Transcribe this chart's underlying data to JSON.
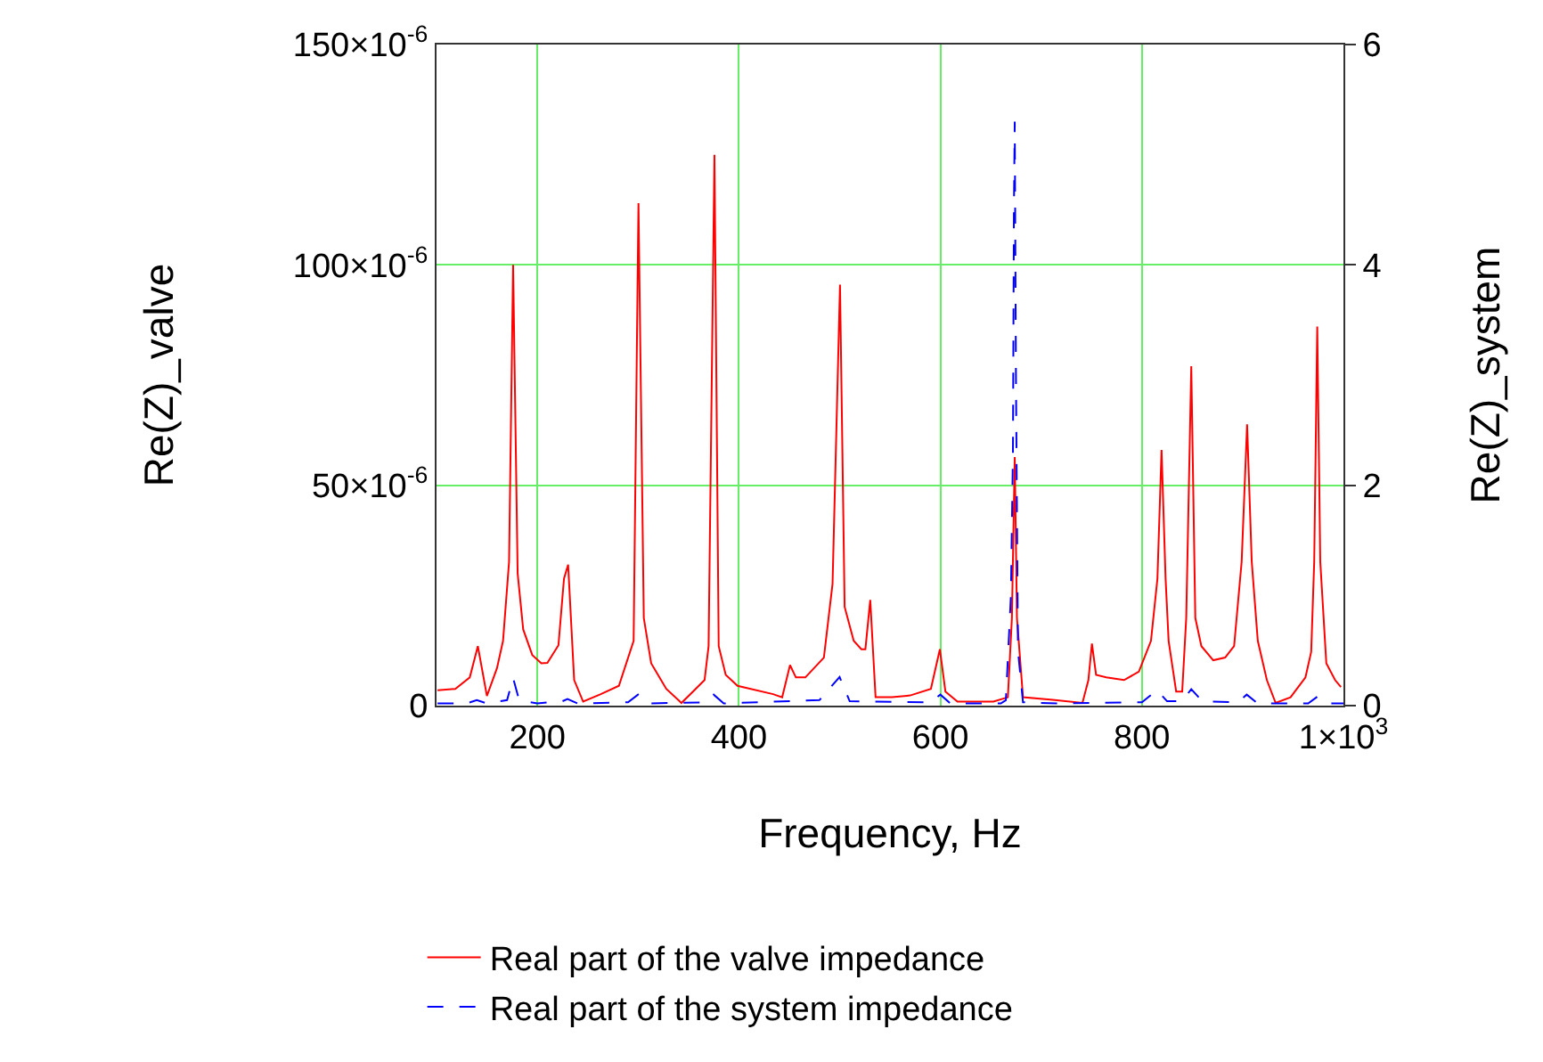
{
  "chart_data": {
    "type": "line",
    "xlabel": "Frequency, Hz",
    "ylabel": "Re(Z)_valve",
    "y2label": "Re(Z)_system",
    "xlim": [
      100,
      1000
    ],
    "xticks": [
      200,
      400,
      600,
      800,
      {
        "value": 1000,
        "label": "1×10$^{3}$"
      }
    ],
    "ylim": [
      0,
      0.00015
    ],
    "yticks": [
      0,
      {
        "value": 5e-05,
        "label": "50×10$^{-6}$"
      },
      {
        "value": 0.0001,
        "label": "100×10$^{-6}$"
      },
      {
        "value": 0.00015,
        "label": "150×10$^{-6}$"
      }
    ],
    "y2lim": [
      0,
      6
    ],
    "y2ticks": [
      0,
      2,
      4,
      6
    ],
    "grid": true,
    "legend": "bottom",
    "marker": "none",
    "series": [
      {
        "name": "Real part of the valve impedance",
        "color": "#ff0000",
        "line_style": "solid",
        "x": [
          101,
          118.6,
          133,
          141,
          150,
          160,
          166,
          172,
          176,
          180.5,
          186,
          195,
          204,
          210,
          221,
          226.5,
          230.6,
          236.6,
          245.5,
          263,
          281,
          295.6,
          300.4,
          305.7,
          313,
          328,
          343,
          354.5,
          366,
          370,
          375.8,
          380,
          387,
          398.7,
          434,
          443,
          450.8,
          456.6,
          466,
          484.4,
          493,
          500.4,
          505,
          514,
          521.6,
          525.6,
          530.4,
          535.7,
          546,
          552,
          570,
          590.6,
          599.5,
          605,
          617,
          652.6,
          667,
          671,
          673.8,
          676,
          682,
          711.5,
          741,
          746.9,
          750.4,
          754.5,
          764.6,
          782.3,
          797,
          809,
          815.4,
          819.5,
          823.5,
          826.5,
          834,
          840,
          844,
          849,
          853,
          859,
          870.8,
          882.6,
          891.5,
          899,
          904.4,
          909,
          915,
          924,
          932.7,
          947.5,
          962.3,
          968,
          971,
          974,
          977,
          983,
          991.7,
          997.5
        ],
        "values": [
          3.5e-06,
          3.8e-06,
          6.4e-06,
          1.35e-05,
          2.2e-06,
          8.5e-06,
          1.47e-05,
          3.27e-05,
          0.0001,
          3e-05,
          1.73e-05,
          1.15e-05,
          9.6e-06,
          9.7e-06,
          1.37e-05,
          2.88e-05,
          3.2e-05,
          5.8e-06,
          9e-07,
          2.6e-06,
          4.5e-06,
          1.47e-05,
          0.000114,
          1.99e-05,
          9.6e-06,
          3.8e-06,
          6e-07,
          3.2e-06,
          5.8e-06,
          1.35e-05,
          0.000125,
          1.35e-05,
          7e-06,
          4.5e-06,
          2.6e-06,
          1.9e-06,
          9.2e-06,
          6.4e-06,
          6.4e-06,
          1.09e-05,
          2.76e-05,
          9.55e-05,
          2.24e-05,
          1.47e-05,
          1.28e-05,
          1.28e-05,
          2.4e-05,
          1.9e-06,
          1.9e-06,
          1.9e-06,
          2.3e-06,
          3.8e-06,
          1.28e-05,
          3.2e-06,
          9e-07,
          9e-07,
          1.9e-06,
          1.99e-05,
          5.64e-05,
          1.99e-05,
          1.9e-06,
          1.3e-06,
          6e-07,
          5.8e-06,
          1.41e-05,
          7e-06,
          6.4e-06,
          5.8e-06,
          7.7e-06,
          1.47e-05,
          2.88e-05,
          5.8e-05,
          2.88e-05,
          1.47e-05,
          3.2e-06,
          3.2e-06,
          1.99e-05,
          7.7e-05,
          1.99e-05,
          1.35e-05,
          1.03e-05,
          1.09e-05,
          1.35e-05,
          3.27e-05,
          6.38e-05,
          3.27e-05,
          1.47e-05,
          5.8e-06,
          6e-07,
          1.9e-06,
          6.4e-06,
          1.22e-05,
          3.27e-05,
          8.6e-05,
          3.27e-05,
          9.6e-06,
          5.8e-06,
          4.2e-06
        ]
      },
      {
        "name": "Real part of the system impedance",
        "color": "#0000ff",
        "line_style": "dashed",
        "axis": "y2",
        "x": [
          101,
          130,
          140,
          150,
          170,
          176,
          182,
          200,
          225,
          230,
          240,
          290,
          300,
          310,
          365,
          375,
          385,
          480,
          500,
          510,
          590,
          600,
          610,
          660,
          665,
          670,
          672,
          673,
          673.8,
          675,
          677,
          682,
          720,
          800,
          815,
          825,
          840,
          849,
          860,
          895,
          904,
          915,
          965,
          974,
          985,
          1000
        ],
        "values": [
          0.02,
          0.02,
          0.05,
          0.02,
          0.05,
          0.25,
          0.05,
          0.02,
          0.04,
          0.06,
          0.02,
          0.03,
          0.1,
          0.02,
          0.03,
          0.1,
          0.02,
          0.05,
          0.26,
          0.04,
          0.03,
          0.1,
          0.02,
          0.02,
          0.05,
          1.0,
          2.3,
          4.5,
          5.3,
          3.0,
          0.5,
          0.03,
          0.02,
          0.03,
          0.14,
          0.04,
          0.04,
          0.15,
          0.04,
          0.03,
          0.1,
          0.02,
          0.02,
          0.08,
          0.02,
          0.02
        ]
      }
    ]
  }
}
